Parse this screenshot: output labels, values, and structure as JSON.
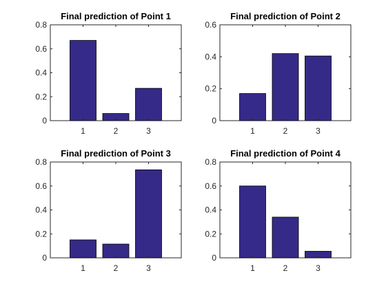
{
  "colors": {
    "bar": "#352A87",
    "axis": "#262626",
    "background": "#FFFFFF"
  },
  "chart_data": [
    {
      "type": "bar",
      "title": "Final prediction of Point 1",
      "categories": [
        "1",
        "2",
        "3"
      ],
      "values": [
        0.67,
        0.06,
        0.27
      ],
      "ylim": [
        0,
        0.8
      ],
      "yticks": [
        "0",
        "0.2",
        "0.4",
        "0.6",
        "0.8"
      ],
      "xlim": [
        0,
        4
      ],
      "grid": false
    },
    {
      "type": "bar",
      "title": "Final prediction of Point 2",
      "categories": [
        "1",
        "2",
        "3"
      ],
      "values": [
        0.17,
        0.42,
        0.405
      ],
      "ylim": [
        0,
        0.6
      ],
      "yticks": [
        "0",
        "0.2",
        "0.4",
        "0.6"
      ],
      "xlim": [
        0,
        4
      ],
      "grid": false
    },
    {
      "type": "bar",
      "title": "Final prediction of Point 3",
      "categories": [
        "1",
        "2",
        "3"
      ],
      "values": [
        0.15,
        0.115,
        0.735
      ],
      "ylim": [
        0,
        0.8
      ],
      "yticks": [
        "0",
        "0.2",
        "0.4",
        "0.6",
        "0.8"
      ],
      "xlim": [
        0,
        4
      ],
      "grid": false
    },
    {
      "type": "bar",
      "title": "Final prediction of Point 4",
      "categories": [
        "1",
        "2",
        "3"
      ],
      "values": [
        0.6,
        0.34,
        0.055
      ],
      "ylim": [
        0,
        0.8
      ],
      "yticks": [
        "0",
        "0.2",
        "0.4",
        "0.6",
        "0.8"
      ],
      "xlim": [
        0,
        4
      ],
      "grid": false
    }
  ]
}
